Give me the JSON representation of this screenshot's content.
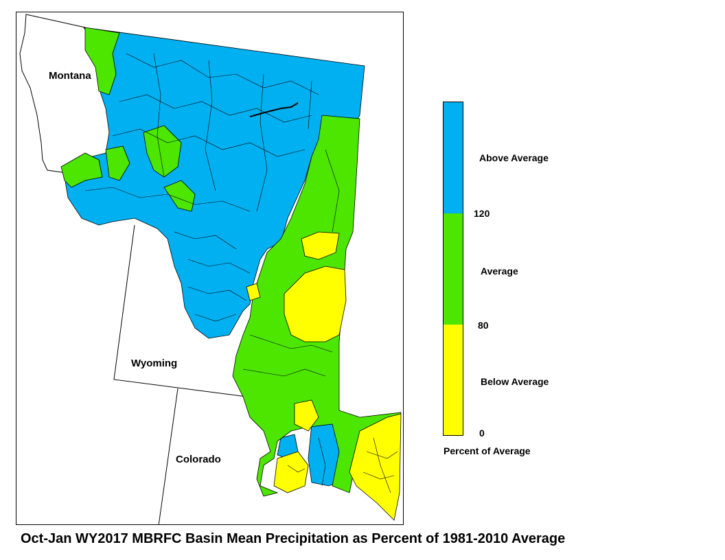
{
  "title": "Oct-Jan WY2017 MBRFC Basin Mean Precipitation as Percent of 1981-2010 Average",
  "states": {
    "montana": "Montana",
    "wyoming": "Wyoming",
    "colorado": "Colorado"
  },
  "legend": {
    "title": "Percent of Average",
    "categories": [
      {
        "label": "Above Average",
        "color": "#00b0f0",
        "from": 120
      },
      {
        "label": "Average",
        "color": "#4ce600",
        "from": 80,
        "to": 120
      },
      {
        "label": "Below Average",
        "color": "#ffff00",
        "from": 0,
        "to": 80
      }
    ],
    "breaks": {
      "b120": "120",
      "b80": "80",
      "b0": "0"
    }
  },
  "colors": {
    "above": "#00b0f0",
    "average": "#4ce600",
    "below": "#ffff00",
    "border": "#000000"
  }
}
